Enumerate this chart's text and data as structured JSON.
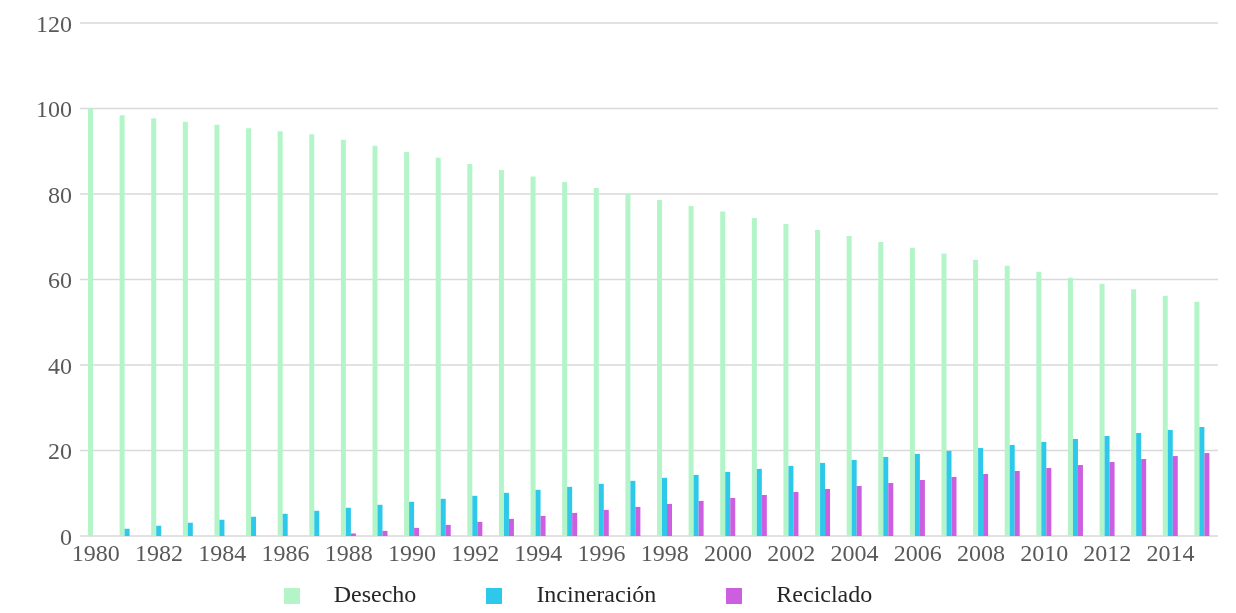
{
  "chart_data": {
    "type": "bar",
    "categories": [
      "1980",
      null,
      "1982",
      null,
      "1984",
      null,
      "1986",
      null,
      "1988",
      null,
      "1990",
      null,
      "1992",
      null,
      "1994",
      null,
      "1996",
      null,
      "1998",
      null,
      "2000",
      null,
      "2002",
      null,
      "2004",
      null,
      "2006",
      null,
      "2008",
      null,
      "2010",
      null,
      "2012",
      null,
      "2014",
      null
    ],
    "series": [
      {
        "name": "Desecho",
        "color": "#b3f5c8",
        "values": [
          100,
          98.4,
          97.7,
          96.9,
          96.2,
          95.4,
          94.7,
          94.0,
          92.7,
          91.3,
          89.8,
          88.5,
          87.0,
          85.6,
          84.1,
          82.8,
          81.4,
          80.0,
          78.6,
          77.2,
          75.9,
          74.4,
          73.0,
          71.6,
          70.2,
          68.8,
          67.4,
          66.1,
          64.6,
          63.2,
          61.8,
          60.4,
          59.0,
          57.7,
          56.2,
          54.8
        ]
      },
      {
        "name": "Incineración",
        "color": "#2ec8ea",
        "values": [
          0,
          1.7,
          2.4,
          3.1,
          3.8,
          4.5,
          5.2,
          5.9,
          6.6,
          7.3,
          8.0,
          8.7,
          9.4,
          10.1,
          10.8,
          11.5,
          12.2,
          12.9,
          13.6,
          14.3,
          15.0,
          15.7,
          16.4,
          17.1,
          17.8,
          18.5,
          19.2,
          19.9,
          20.6,
          21.3,
          22.0,
          22.7,
          23.4,
          24.1,
          24.8,
          25.5
        ]
      },
      {
        "name": "Reciclado",
        "color": "#cc5ee0",
        "values": [
          0,
          0,
          0,
          0,
          0,
          0,
          0,
          0,
          0.6,
          1.2,
          1.9,
          2.6,
          3.3,
          4.0,
          4.7,
          5.4,
          6.1,
          6.8,
          7.5,
          8.2,
          8.9,
          9.6,
          10.3,
          11.0,
          11.7,
          12.4,
          13.1,
          13.8,
          14.5,
          15.2,
          15.9,
          16.6,
          17.3,
          18.0,
          18.7,
          19.4
        ]
      }
    ],
    "ylim": [
      0,
      120
    ],
    "yticks": [
      0,
      20,
      40,
      60,
      80,
      100,
      120
    ],
    "grid": "y",
    "legend": "bottom"
  }
}
